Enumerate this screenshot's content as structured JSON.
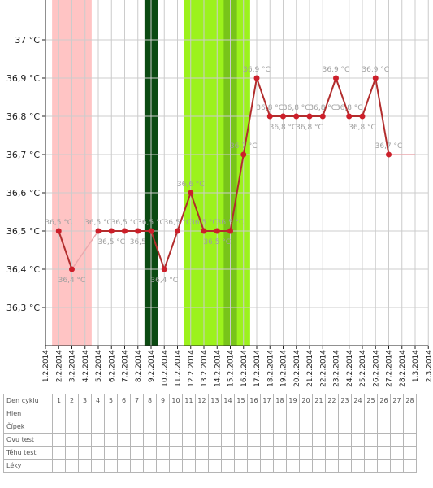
{
  "chart_data": {
    "type": "line",
    "xlabel": "",
    "ylabel": "",
    "y_ticks": [
      "36,3 °C",
      "36,4 °C",
      "36,5 °C",
      "36,6 °C",
      "36,7 °C",
      "36,8 °C",
      "36,9 °C",
      "37 °C"
    ],
    "y_tick_values": [
      36.3,
      36.4,
      36.5,
      36.6,
      36.7,
      36.8,
      36.9,
      37.0
    ],
    "ylim": [
      36.2,
      37.1
    ],
    "x_ticks": [
      "1.2.2014",
      "2.2.2014",
      "3.2.2014",
      "4.2.2014",
      "5.2.2014",
      "6.2.2014",
      "7.2.2014",
      "8.2.2014",
      "9.2.2014",
      "10.2.2014",
      "11.2.2014",
      "12.2.2014",
      "13.2.2014",
      "14.2.2014",
      "15.2.2014",
      "16.2.2014",
      "17.2.2014",
      "18.2.2014",
      "19.2.2014",
      "20.2.2014",
      "21.2.2014",
      "22.2.2014",
      "23.2.2014",
      "24.2.2014",
      "25.2.2014",
      "26.2.2014",
      "27.2.2014",
      "28.2.2014",
      "1.3.2014",
      "2.3.2014"
    ],
    "grid": true,
    "bands": [
      {
        "from": 1.5,
        "to": 4.5,
        "color": "#ffc4c4"
      },
      {
        "from": 8.5,
        "to": 9.5,
        "color": "#0b4a12"
      },
      {
        "from": 11.5,
        "to": 16.5,
        "color": "#9cf21c"
      },
      {
        "from": 14.5,
        "to": 15.5,
        "color": "#78c41a"
      }
    ],
    "series": [
      {
        "points": [
          {
            "x": 2,
            "y": 36.5,
            "label": "36,5 °C",
            "pos": "above"
          },
          {
            "x": 3,
            "y": 36.4,
            "label": "36,4 °C",
            "pos": "below"
          },
          {
            "x": 5,
            "y": 36.5,
            "label": "36,5 °C",
            "pos": "above"
          },
          {
            "x": 6,
            "y": 36.5,
            "label": "36,5 °C",
            "pos": "below"
          },
          {
            "x": 7,
            "y": 36.5,
            "label": "36,5 °C",
            "pos": "above"
          },
          {
            "x": 8,
            "y": 36.5,
            "label": "36,5",
            "pos": "below"
          },
          {
            "x": 9,
            "y": 36.5,
            "label": "36,5 °C",
            "pos": "above"
          },
          {
            "x": 10,
            "y": 36.4,
            "label": "36,4 °C",
            "pos": "below"
          },
          {
            "x": 11,
            "y": 36.5,
            "label": "36,5 °C",
            "pos": "above"
          },
          {
            "x": 12,
            "y": 36.6,
            "label": "36,6 °C",
            "pos": "above"
          },
          {
            "x": 13,
            "y": 36.5,
            "label": "36,5 °C",
            "pos": "above"
          },
          {
            "x": 14,
            "y": 36.5,
            "label": "36,5 °C",
            "pos": "below"
          },
          {
            "x": 15,
            "y": 36.5,
            "label": "36,5 °C",
            "pos": "above"
          },
          {
            "x": 16,
            "y": 36.7,
            "label": "36,7 °C",
            "pos": "above"
          },
          {
            "x": 17,
            "y": 36.9,
            "label": "36,9 °C",
            "pos": "above"
          },
          {
            "x": 18,
            "y": 36.8,
            "label": "36,8 °C",
            "pos": "above"
          },
          {
            "x": 19,
            "y": 36.8,
            "label": "36,8 °C",
            "pos": "below"
          },
          {
            "x": 20,
            "y": 36.8,
            "label": "36,8 °C",
            "pos": "above"
          },
          {
            "x": 21,
            "y": 36.8,
            "label": "36,8 °C",
            "pos": "below"
          },
          {
            "x": 22,
            "y": 36.8,
            "label": "36,8 °C",
            "pos": "above"
          },
          {
            "x": 23,
            "y": 36.9,
            "label": "36,9 °C",
            "pos": "above"
          },
          {
            "x": 24,
            "y": 36.8,
            "label": "36,8 °C",
            "pos": "above"
          },
          {
            "x": 25,
            "y": 36.8,
            "label": "36,8 °C",
            "pos": "below"
          },
          {
            "x": 26,
            "y": 36.9,
            "label": "36,9 °C",
            "pos": "above"
          },
          {
            "x": 27,
            "y": 36.7,
            "label": "36,7 °C",
            "pos": "above"
          }
        ],
        "connector_gaps": [
          [
            3,
            5
          ]
        ],
        "trailing": {
          "from_x": 27,
          "to_x": 29,
          "y": 36.7
        },
        "line_color": "#b22d2d",
        "marker_color": "#cc1f2a",
        "gap_color": "#e9a9ad"
      }
    ]
  },
  "cycle_table": {
    "header_label": "Den cyklu",
    "days": [
      "1",
      "2",
      "3",
      "4",
      "5",
      "6",
      "7",
      "8",
      "9",
      "10",
      "11",
      "12",
      "13",
      "14",
      "15",
      "16",
      "17",
      "18",
      "19",
      "20",
      "21",
      "22",
      "23",
      "24",
      "25",
      "26",
      "27",
      "28"
    ],
    "rows": [
      "Hlen",
      "Čípek",
      "Ovu test",
      "Těhu test",
      "Léky"
    ]
  }
}
